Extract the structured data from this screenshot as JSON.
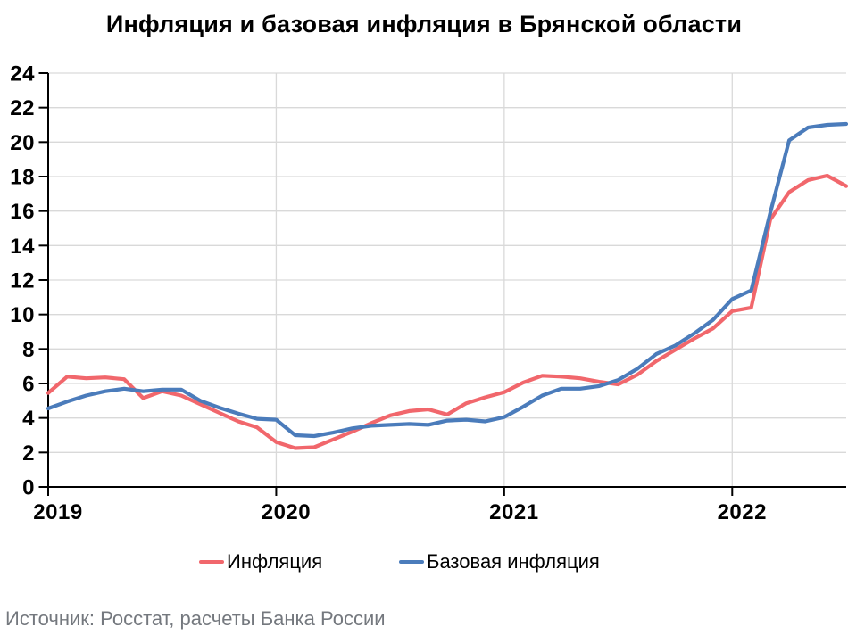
{
  "title": "Инфляция и базовая инфляция в Брянской области",
  "source_note": "Источник: Росстат, расчеты Банка России",
  "legend": [
    {
      "label": "Инфляция",
      "color": "#f1676c"
    },
    {
      "label": "Базовая инфляция",
      "color": "#4b7cbb"
    }
  ],
  "colors": {
    "inflation_line": "#f1676c",
    "core_inflation_line": "#4b7cbb",
    "gridline": "#d9d9d9",
    "axis": "#000000",
    "tick_label": "#000000",
    "source_text": "#74787e",
    "background": "#ffffff"
  },
  "chart_data": {
    "type": "line",
    "title": "Инфляция и базовая инфляция в Брянской области",
    "xlabel": "",
    "ylabel": "",
    "ylim": [
      0,
      24
    ],
    "y_tick_step": 2,
    "y_tick_labels": [
      "0",
      "2",
      "4",
      "6",
      "8",
      "10",
      "12",
      "14",
      "16",
      "18",
      "20",
      "22",
      "24"
    ],
    "x_tick_labels": [
      "2019",
      "2020",
      "2021",
      "2022"
    ],
    "x_tick_indices": [
      0,
      12,
      24,
      36
    ],
    "grid": true,
    "legend_position": "bottom",
    "unit": "percent, year-over-year",
    "x": [
      "2019-01",
      "2019-02",
      "2019-03",
      "2019-04",
      "2019-05",
      "2019-06",
      "2019-07",
      "2019-08",
      "2019-09",
      "2019-10",
      "2019-11",
      "2019-12",
      "2020-01",
      "2020-02",
      "2020-03",
      "2020-04",
      "2020-05",
      "2020-06",
      "2020-07",
      "2020-08",
      "2020-09",
      "2020-10",
      "2020-11",
      "2020-12",
      "2021-01",
      "2021-02",
      "2021-03",
      "2021-04",
      "2021-05",
      "2021-06",
      "2021-07",
      "2021-08",
      "2021-09",
      "2021-10",
      "2021-11",
      "2021-12",
      "2022-01",
      "2022-02",
      "2022-03",
      "2022-04",
      "2022-05",
      "2022-06",
      "2022-07"
    ],
    "series": [
      {
        "name": "Инфляция",
        "color": "#f1676c",
        "values": [
          5.45,
          6.4,
          6.3,
          6.35,
          6.25,
          5.15,
          5.55,
          5.3,
          4.8,
          4.3,
          3.8,
          3.45,
          2.6,
          2.25,
          2.3,
          2.75,
          3.2,
          3.7,
          4.15,
          4.4,
          4.5,
          4.2,
          4.85,
          5.2,
          5.5,
          6.05,
          6.45,
          6.4,
          6.3,
          6.1,
          5.95,
          6.5,
          7.3,
          7.95,
          8.6,
          9.2,
          10.2,
          10.4,
          15.5,
          17.1,
          17.8,
          18.05,
          17.45
        ]
      },
      {
        "name": "Базовая инфляция",
        "color": "#4b7cbb",
        "values": [
          4.55,
          4.95,
          5.3,
          5.55,
          5.7,
          5.55,
          5.65,
          5.65,
          5.0,
          4.6,
          4.25,
          3.95,
          3.9,
          3.0,
          2.95,
          3.15,
          3.4,
          3.55,
          3.6,
          3.65,
          3.6,
          3.85,
          3.9,
          3.8,
          4.05,
          4.65,
          5.3,
          5.7,
          5.7,
          5.85,
          6.2,
          6.85,
          7.7,
          8.2,
          8.9,
          9.7,
          10.9,
          11.4,
          15.9,
          20.1,
          20.85,
          21.0,
          21.05
        ]
      }
    ],
    "source": "Источник: Росстат, расчеты Банка России"
  }
}
